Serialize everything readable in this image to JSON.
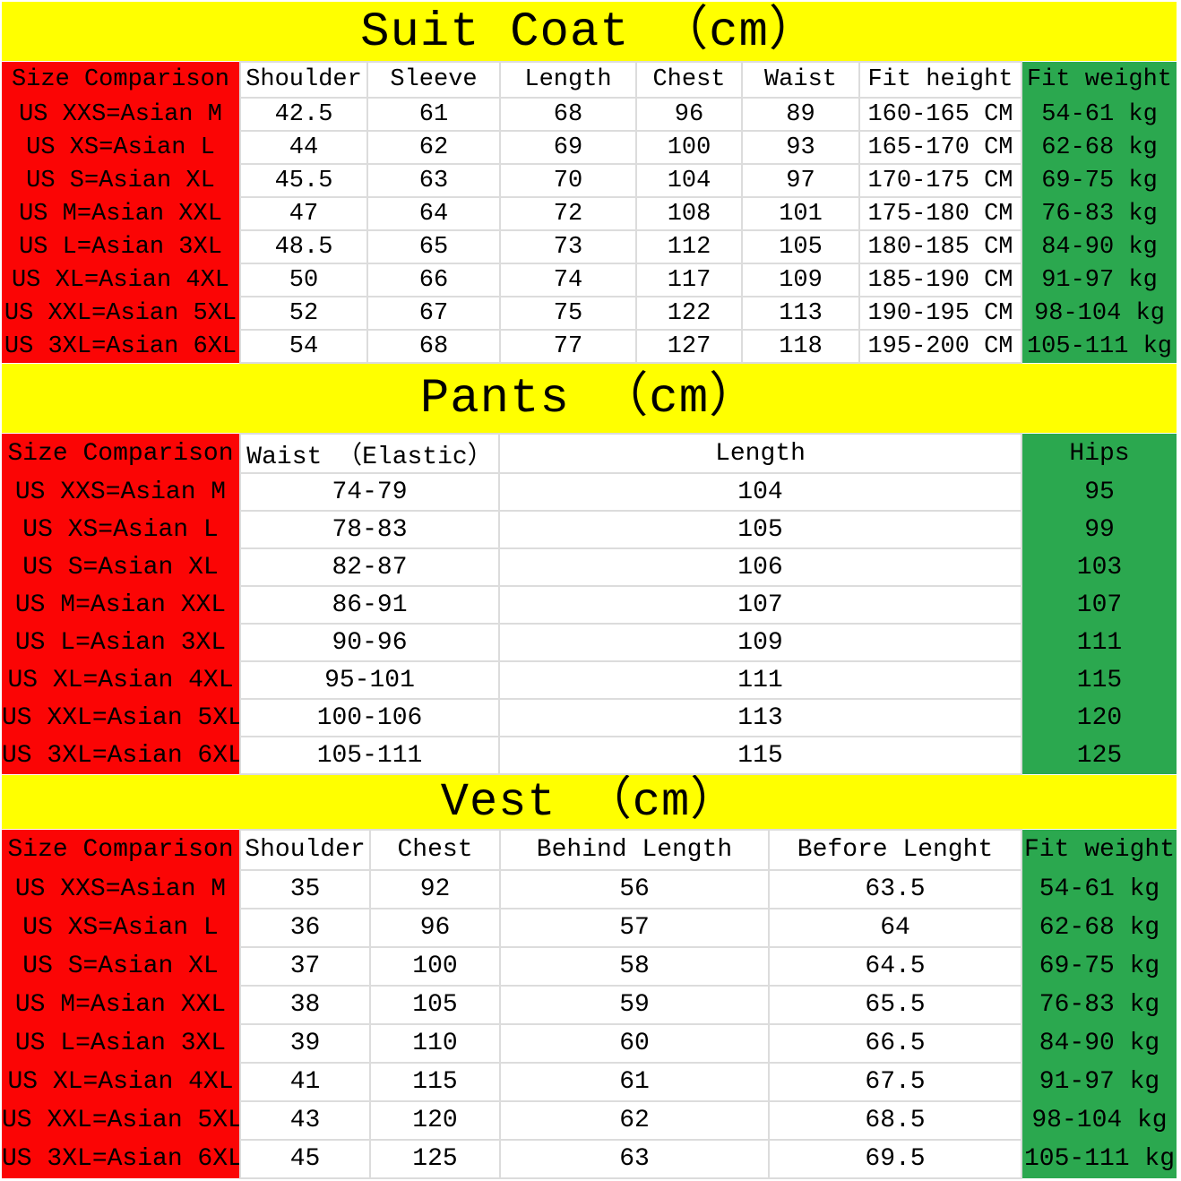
{
  "colors": {
    "banner_yellow": "#FFFF00",
    "size_red": "#FB0505",
    "accent_green": "#2BA84F",
    "grid_line": "#DCDCDC",
    "text_black": "#000000"
  },
  "tables": [
    {
      "title": "Suit Coat （cm）",
      "corner_header": "Size Comparison",
      "columns": [
        "Shoulder",
        "Sleeve",
        "Length",
        "Chest",
        "Waist",
        "Fit height",
        "Fit weight"
      ],
      "rows": [
        {
          "size": "US XXS=Asian M",
          "values": [
            "42.5",
            "61",
            "68",
            "96",
            "89",
            "160-165 CM",
            "54-61 kg"
          ]
        },
        {
          "size": "US XS=Asian L",
          "values": [
            "44",
            "62",
            "69",
            "100",
            "93",
            "165-170 CM",
            "62-68 kg"
          ]
        },
        {
          "size": "US S=Asian XL",
          "values": [
            "45.5",
            "63",
            "70",
            "104",
            "97",
            "170-175 CM",
            "69-75 kg"
          ]
        },
        {
          "size": "US M=Asian XXL",
          "values": [
            "47",
            "64",
            "72",
            "108",
            "101",
            "175-180 CM",
            "76-83 kg"
          ]
        },
        {
          "size": "US L=Asian 3XL",
          "values": [
            "48.5",
            "65",
            "73",
            "112",
            "105",
            "180-185 CM",
            "84-90 kg"
          ]
        },
        {
          "size": "US XL=Asian 4XL",
          "values": [
            "50",
            "66",
            "74",
            "117",
            "109",
            "185-190 CM",
            "91-97 kg"
          ]
        },
        {
          "size": "US XXL=Asian 5XL",
          "values": [
            "52",
            "67",
            "75",
            "122",
            "113",
            "190-195 CM",
            "98-104 kg"
          ]
        },
        {
          "size": "US 3XL=Asian 6XL",
          "values": [
            "54",
            "68",
            "77",
            "127",
            "118",
            "195-200 CM",
            "105-111 kg"
          ]
        }
      ]
    },
    {
      "title": "Pants （cm）",
      "corner_header": "Size Comparison",
      "columns": [
        "Waist （Elastic）",
        "Length",
        "Hips"
      ],
      "rows": [
        {
          "size": "US XXS=Asian M",
          "values": [
            "74-79",
            "104",
            "95"
          ]
        },
        {
          "size": "US XS=Asian L",
          "values": [
            "78-83",
            "105",
            "99"
          ]
        },
        {
          "size": "US S=Asian XL",
          "values": [
            "82-87",
            "106",
            "103"
          ]
        },
        {
          "size": "US M=Asian XXL",
          "values": [
            "86-91",
            "107",
            "107"
          ]
        },
        {
          "size": "US L=Asian 3XL",
          "values": [
            "90-96",
            "109",
            "111"
          ]
        },
        {
          "size": "US XL=Asian 4XL",
          "values": [
            "95-101",
            "111",
            "115"
          ]
        },
        {
          "size": "US XXL=Asian 5XL",
          "values": [
            "100-106",
            "113",
            "120"
          ]
        },
        {
          "size": "US 3XL=Asian 6XL",
          "values": [
            "105-111",
            "115",
            "125"
          ]
        }
      ]
    },
    {
      "title": "Vest （cm）",
      "corner_header": "Size Comparison",
      "columns": [
        "Shoulder",
        "Chest",
        "Behind Length",
        "Before Lenght",
        "Fit weight"
      ],
      "rows": [
        {
          "size": "US XXS=Asian M",
          "values": [
            "35",
            "92",
            "56",
            "63.5",
            "54-61 kg"
          ]
        },
        {
          "size": "US XS=Asian L",
          "values": [
            "36",
            "96",
            "57",
            "64",
            "62-68 kg"
          ]
        },
        {
          "size": "US S=Asian XL",
          "values": [
            "37",
            "100",
            "58",
            "64.5",
            "69-75 kg"
          ]
        },
        {
          "size": "US M=Asian XXL",
          "values": [
            "38",
            "105",
            "59",
            "65.5",
            "76-83 kg"
          ]
        },
        {
          "size": "US L=Asian 3XL",
          "values": [
            "39",
            "110",
            "60",
            "66.5",
            "84-90 kg"
          ]
        },
        {
          "size": "US XL=Asian 4XL",
          "values": [
            "41",
            "115",
            "61",
            "67.5",
            "91-97 kg"
          ]
        },
        {
          "size": "US XXL=Asian 5XL",
          "values": [
            "43",
            "120",
            "62",
            "68.5",
            "98-104 kg"
          ]
        },
        {
          "size": "US 3XL=Asian 6XL",
          "values": [
            "45",
            "125",
            "63",
            "69.5",
            "105-111 kg"
          ]
        }
      ]
    }
  ]
}
